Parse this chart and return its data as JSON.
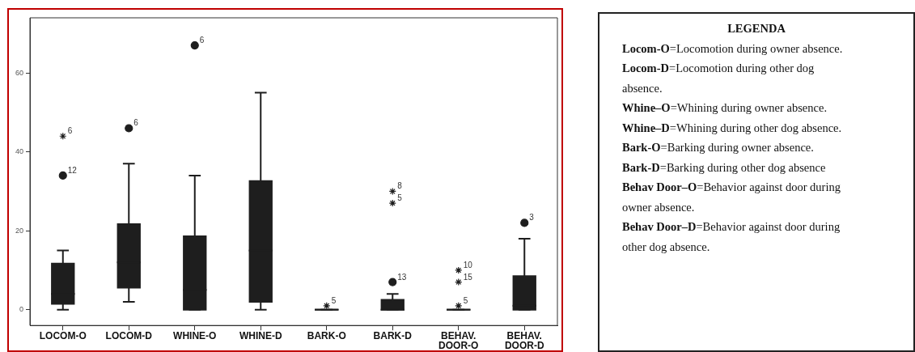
{
  "chart_data": {
    "type": "box",
    "legend_title": "LEGENDA",
    "categories": [
      "LOCOM-O",
      "LOCOM-D",
      "WHINE-O",
      "WHINE-D",
      "BARK-O",
      "BARK-D",
      "BEHAV. DOOR-O",
      "BEHAV. DOOR-D"
    ],
    "ylim": [
      -4,
      74
    ],
    "yticks": [
      0,
      20,
      40,
      60
    ],
    "series": [
      {
        "type": "box",
        "color": "#1e1e1e",
        "boxes": [
          {
            "low": 0,
            "q1": 1.5,
            "median": 4,
            "q3": 11.7,
            "high": 15
          },
          {
            "low": 2,
            "q1": 5.6,
            "median": 12,
            "q3": 21.7,
            "high": 37
          },
          {
            "low": 0,
            "q1": 0,
            "median": 5,
            "q3": 18.6,
            "high": 34
          },
          {
            "low": 0,
            "q1": 2,
            "median": 15,
            "q3": 32.6,
            "high": 55
          },
          {
            "low": 0,
            "q1": 0,
            "median": 0,
            "q3": 0,
            "high": 0
          },
          {
            "low": 0,
            "q1": 0,
            "median": 0,
            "q3": 2.5,
            "high": 4
          },
          {
            "low": 0,
            "q1": 0,
            "median": 0,
            "q3": 0,
            "high": 0
          },
          {
            "low": 0,
            "q1": 0,
            "median": 1,
            "q3": 8.5,
            "high": 18
          }
        ]
      },
      {
        "type": "scatter",
        "marker": "circle",
        "color": "#1e1e1e",
        "x": [
          "LOCOM-O",
          "LOCOM-D",
          "WHINE-O",
          "BARK-D",
          "BEHAV. DOOR-D"
        ],
        "values": [
          34,
          46,
          67,
          7,
          22
        ]
      },
      {
        "type": "scatter",
        "marker": "cross",
        "color": "#1e1e1e",
        "x": [
          "LOCOM-O",
          "BARK-O",
          "BARK-D",
          "BARK-D",
          "BEHAV. DOOR-O",
          "BEHAV. DOOR-O",
          "BEHAV. DOOR-O"
        ],
        "values": [
          44,
          1,
          30,
          27,
          10,
          7,
          1
        ]
      }
    ],
    "annotations": [
      {
        "text": "6",
        "x": "LOCOM-O",
        "y": 44
      },
      {
        "text": "12",
        "x": "LOCOM-O",
        "y": 34
      },
      {
        "text": "6",
        "x": "LOCOM-D",
        "y": 46
      },
      {
        "text": "6",
        "x": "WHINE-O",
        "y": 67
      },
      {
        "text": "5",
        "x": "BARK-O",
        "y": 1
      },
      {
        "text": "8",
        "x": "BARK-D",
        "y": 30
      },
      {
        "text": "5",
        "x": "BARK-D",
        "y": 27
      },
      {
        "text": "13",
        "x": "BARK-D",
        "y": 7
      },
      {
        "text": "10",
        "x": "BEHAV. DOOR-O",
        "y": 10
      },
      {
        "text": "15",
        "x": "BEHAV. DOOR-O",
        "y": 7
      },
      {
        "text": "5",
        "x": "BEHAV. DOOR-O",
        "y": 1
      },
      {
        "text": "3",
        "x": "BEHAV. DOOR-D",
        "y": 22
      },
      "Locom-O=Locomotion during owner absence.",
      "Locom-D=Locomotion during other dog absence.",
      "Whine–O=Whining during owner absence.",
      "Whine–D=Whining during other dog absence.",
      "Bark-O=Barking during owner absence.",
      "Bark-D=Barking during other dog absence",
      "Behav Door–O=Behavior against door during owner absence.",
      "Behav Door–D=Behavior against door during other dog absence."
    ]
  }
}
